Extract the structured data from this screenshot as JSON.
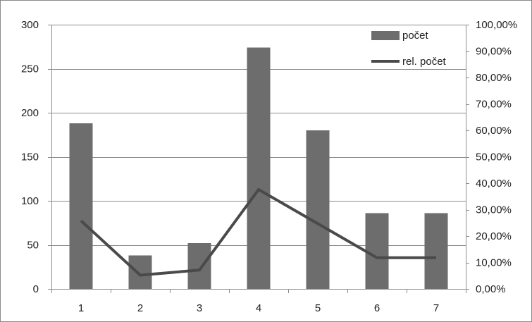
{
  "chart_data": {
    "type": "bar",
    "categories": [
      "1",
      "2",
      "3",
      "4",
      "5",
      "6",
      "7"
    ],
    "series": [
      {
        "name": "počet",
        "type": "bar",
        "axis": "left",
        "values": [
          188,
          38,
          52,
          274,
          180,
          86,
          86
        ],
        "color": "#6d6d6d"
      },
      {
        "name": "rel. počet",
        "type": "line",
        "axis": "right",
        "values": [
          0.2578,
          0.0521,
          0.0713,
          0.3759,
          0.2469,
          0.118,
          0.118
        ],
        "color": "#4a4a4a"
      }
    ],
    "y_left": {
      "ylim": [
        0,
        300
      ],
      "ticks": [
        0,
        50,
        100,
        150,
        200,
        250,
        300
      ],
      "tick_labels": [
        "0",
        "50",
        "100",
        "150",
        "200",
        "250",
        "300"
      ]
    },
    "y_right": {
      "ylim": [
        0,
        1
      ],
      "ticks": [
        0,
        0.1,
        0.2,
        0.3,
        0.4,
        0.5,
        0.6,
        0.7,
        0.8,
        0.9,
        1.0
      ],
      "tick_labels": [
        "0,00%",
        "10,00%",
        "20,00%",
        "30,00%",
        "40,00%",
        "50,00%",
        "60,00%",
        "70,00%",
        "80,00%",
        "90,00%",
        "100,00%"
      ]
    },
    "grid": true,
    "legend": "top-right",
    "title": "",
    "xlabel": "",
    "ylabel": ""
  }
}
